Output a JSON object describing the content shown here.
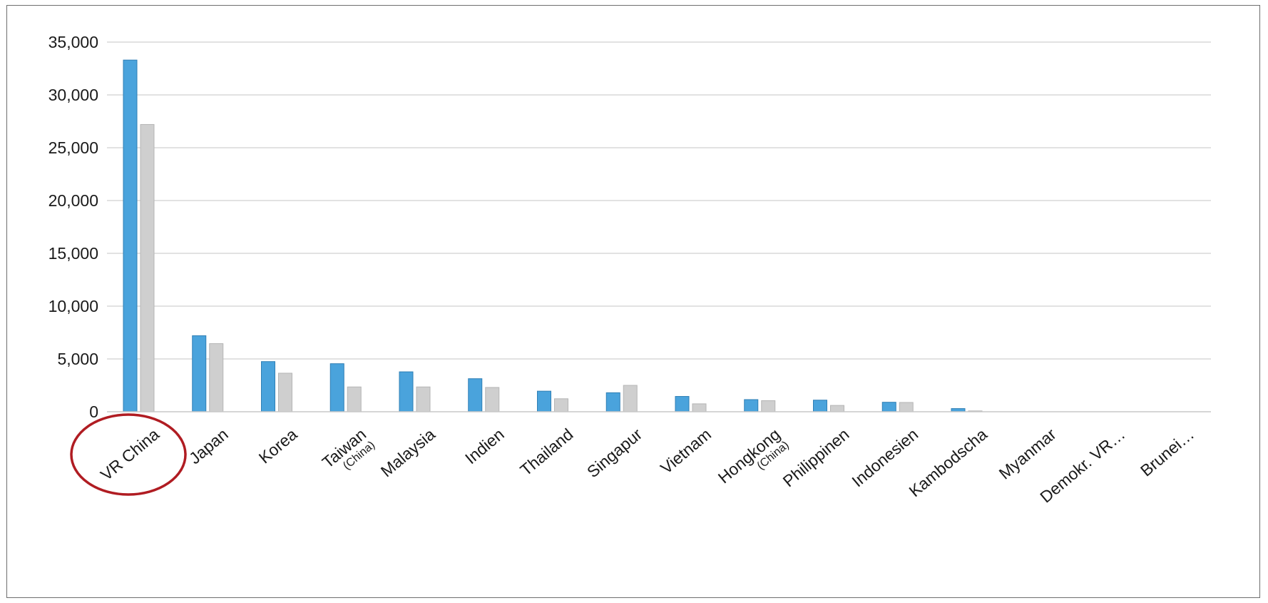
{
  "chart_data": {
    "type": "bar",
    "categories": [
      "VR China",
      "Japan",
      "Korea",
      "Taiwan",
      "Malaysia",
      "Indien",
      "Thailand",
      "Singapur",
      "Vietnam",
      "Hongkong",
      "Philippinen",
      "Indonesien",
      "Kambodscha",
      "Myanmar",
      "Demokr. VR…",
      "Brunei…"
    ],
    "category_sublabels": [
      "",
      "",
      "",
      "(China)",
      "",
      "",
      "",
      "",
      "",
      "(China)",
      "",
      "",
      "",
      "",
      "",
      ""
    ],
    "series": [
      {
        "color": "#4aa3dc",
        "values": [
          33300,
          7200,
          4750,
          4550,
          3780,
          3130,
          1950,
          1800,
          1450,
          1150,
          1100,
          900,
          300,
          0,
          0,
          0
        ]
      },
      {
        "color": "#cfcfcf",
        "values": [
          27200,
          6450,
          3650,
          2350,
          2350,
          2300,
          1230,
          2500,
          750,
          1050,
          600,
          880,
          80,
          0,
          0,
          0
        ]
      }
    ],
    "ylim": [
      0,
      35000
    ],
    "yticks": [
      0,
      5000,
      10000,
      15000,
      20000,
      25000,
      30000,
      35000
    ],
    "ytick_labels": [
      "0",
      "5,000",
      "10,000",
      "15,000",
      "20,000",
      "25,000",
      "30,000",
      "35,000"
    ],
    "grid": true,
    "highlighted_category": "VR China",
    "highlight_color": "#b01c22"
  }
}
